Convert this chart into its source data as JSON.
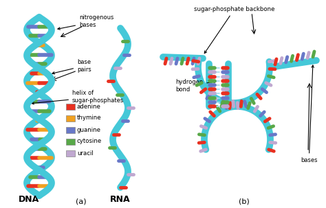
{
  "bg_color": "#ffffff",
  "backbone_color": "#45C8D8",
  "backbone_dark": "#2BA8B8",
  "base_colors": {
    "adenine": "#E83020",
    "thymine": "#F0A020",
    "guanine": "#6878C8",
    "cytosine": "#58A848",
    "uracil": "#C0A8D0"
  },
  "legend_items": [
    {
      "label": "adenine",
      "color": "#E83020"
    },
    {
      "label": "thymine",
      "color": "#F0A020"
    },
    {
      "label": "guanine",
      "color": "#6878C8"
    },
    {
      "label": "cytosine",
      "color": "#58A848"
    },
    {
      "label": "uracil",
      "color": "#C0A8D0"
    }
  ],
  "dna_label": "DNA",
  "rna_label": "RNA",
  "panel_a_label": "(a)",
  "panel_b_label": "(b)"
}
